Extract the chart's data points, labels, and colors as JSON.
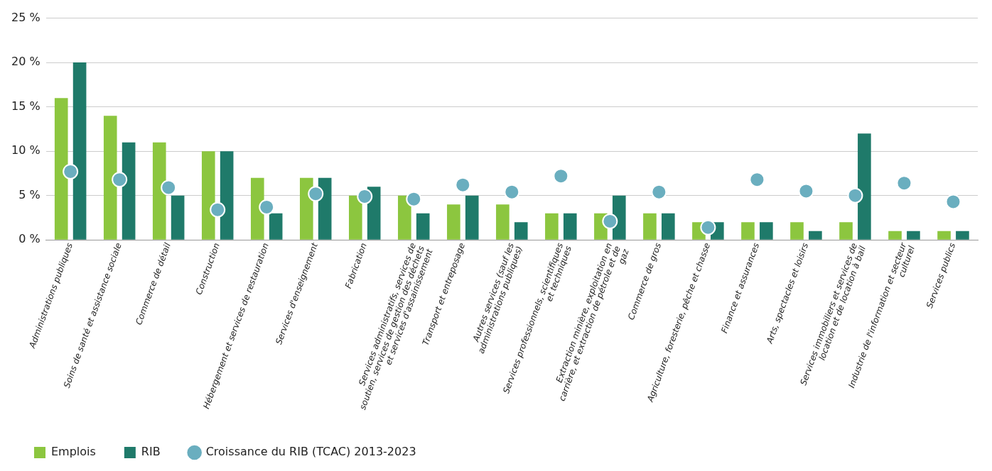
{
  "chart_data": {
    "type": "bar",
    "categories": [
      "Administrations publiques",
      "Soins de santé et assistance sociale",
      "Commerce de détail",
      "Construction",
      "Hébergement et services de restauration",
      "Services d'enseignement",
      "Fabrication",
      "Services administratifs, services de soutien, services de gestion des déchets et services d'assainissement",
      "Transport et entreposage",
      "Autres services (sauf les administrations publiques)",
      "Services professionnels, scientifiques et techniques",
      "Extraction minière, exploitation en carrière, et extraction de pétrole et de gaz",
      "Commerce de gros",
      "Agriculture, foresterie, pêche et chasse",
      "Finance et assurances",
      "Arts, spectacles et loisirs",
      "Services immobiliers et services de location et de location à bail",
      "Industrie de l'information et secteur culturel",
      "Services publics"
    ],
    "series": [
      {
        "name": "Emplois",
        "color": "#8cc63f",
        "values": [
          16,
          14,
          11,
          10,
          7,
          7,
          5,
          5,
          4,
          4,
          3,
          3,
          3,
          2,
          2,
          2,
          2,
          1,
          1
        ]
      },
      {
        "name": "RIB",
        "color": "#1f7a6a",
        "values": [
          20,
          11,
          5,
          10,
          3,
          7,
          6,
          3,
          5,
          2,
          3,
          5,
          3,
          2,
          2,
          1,
          12,
          1,
          1
        ]
      },
      {
        "name": "Croissance du RIB (TCAC) 2013-2023",
        "type": "scatter",
        "color": "#6aaebf",
        "values": [
          7.7,
          6.8,
          5.9,
          3.4,
          3.7,
          5.2,
          4.9,
          4.6,
          6.2,
          5.4,
          7.2,
          2.1,
          5.4,
          1.4,
          6.8,
          5.5,
          5.0,
          6.4,
          4.3
        ]
      }
    ],
    "ylim": [
      0,
      25
    ],
    "yticks": [
      {
        "value": 0,
        "label": "0 %"
      },
      {
        "value": 5,
        "label": "5 %"
      },
      {
        "value": 10,
        "label": "10 %"
      },
      {
        "value": 15,
        "label": "15 %"
      },
      {
        "value": 20,
        "label": "20 %"
      },
      {
        "value": 25,
        "label": "25 %"
      }
    ],
    "grid": "y",
    "legend": "bottom left",
    "marker": "circle"
  }
}
